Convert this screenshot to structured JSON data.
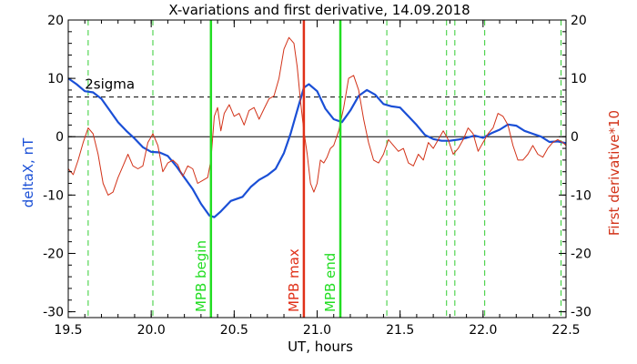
{
  "chart_data": {
    "type": "line",
    "title": "X-variations and first derivative, 14.09.2018",
    "xlabel": "UT, hours",
    "ylabel_left": "deltaX, nT",
    "ylabel_right": "First derivative*10",
    "xlim": [
      19.5,
      22.5
    ],
    "ylim": [
      -31,
      20
    ],
    "x_ticks": [
      "19.5",
      "20.0",
      "20.5",
      "21.0",
      "21.5",
      "22.0",
      "22.5"
    ],
    "y_ticks": [
      "20",
      "10",
      "0",
      "-10",
      "-20",
      "-30"
    ],
    "colors": {
      "deltaX": "#1a4fd6",
      "derivative": "#d23218",
      "mpb_boundary": "#22dd22",
      "mpb_max": "#e03018",
      "dashed_green": "#33cc33"
    },
    "threshold": {
      "label": "2sigma",
      "value": 6.8
    },
    "vertical_lines": [
      {
        "x": 20.36,
        "label": "MPB begin",
        "kind": "boundary"
      },
      {
        "x": 20.92,
        "label": "MPB max",
        "kind": "max"
      },
      {
        "x": 21.14,
        "label": "MPB end",
        "kind": "boundary"
      }
    ],
    "dashed_verticals": [
      19.62,
      20.01,
      21.42,
      21.78,
      21.83,
      22.01,
      22.47
    ],
    "series": [
      {
        "name": "deltaX",
        "axis": "left",
        "points": [
          [
            19.5,
            10.0
          ],
          [
            19.55,
            9.0
          ],
          [
            19.6,
            7.8
          ],
          [
            19.65,
            7.6
          ],
          [
            19.7,
            6.5
          ],
          [
            19.75,
            4.5
          ],
          [
            19.8,
            2.5
          ],
          [
            19.85,
            1.0
          ],
          [
            19.9,
            -0.3
          ],
          [
            19.95,
            -1.8
          ],
          [
            20.0,
            -2.6
          ],
          [
            20.05,
            -2.7
          ],
          [
            20.1,
            -3.3
          ],
          [
            20.15,
            -5.0
          ],
          [
            20.2,
            -7.0
          ],
          [
            20.25,
            -9.0
          ],
          [
            20.3,
            -11.5
          ],
          [
            20.35,
            -13.5
          ],
          [
            20.38,
            -13.8
          ],
          [
            20.42,
            -12.8
          ],
          [
            20.48,
            -11.0
          ],
          [
            20.55,
            -10.3
          ],
          [
            20.6,
            -8.6
          ],
          [
            20.65,
            -7.4
          ],
          [
            20.7,
            -6.6
          ],
          [
            20.75,
            -5.5
          ],
          [
            20.8,
            -2.8
          ],
          [
            20.84,
            0.5
          ],
          [
            20.88,
            4.5
          ],
          [
            20.92,
            8.4
          ],
          [
            20.95,
            9.0
          ],
          [
            21.0,
            7.8
          ],
          [
            21.05,
            4.8
          ],
          [
            21.1,
            3.0
          ],
          [
            21.15,
            2.5
          ],
          [
            21.2,
            4.5
          ],
          [
            21.25,
            7.0
          ],
          [
            21.3,
            8.0
          ],
          [
            21.35,
            7.2
          ],
          [
            21.4,
            5.6
          ],
          [
            21.45,
            5.2
          ],
          [
            21.5,
            5.0
          ],
          [
            21.55,
            3.5
          ],
          [
            21.6,
            2.0
          ],
          [
            21.65,
            0.3
          ],
          [
            21.7,
            -0.4
          ],
          [
            21.75,
            -0.7
          ],
          [
            21.8,
            -0.7
          ],
          [
            21.85,
            -0.5
          ],
          [
            21.9,
            -0.2
          ],
          [
            21.95,
            0.2
          ],
          [
            22.0,
            -0.2
          ],
          [
            22.05,
            0.6
          ],
          [
            22.1,
            1.2
          ],
          [
            22.15,
            2.1
          ],
          [
            22.2,
            1.9
          ],
          [
            22.25,
            1.0
          ],
          [
            22.3,
            0.5
          ],
          [
            22.35,
            0.0
          ],
          [
            22.4,
            -0.9
          ],
          [
            22.45,
            -0.8
          ],
          [
            22.5,
            -1.1
          ]
        ]
      },
      {
        "name": "First derivative*10",
        "axis": "right",
        "points": [
          [
            19.5,
            -5.5
          ],
          [
            19.53,
            -6.5
          ],
          [
            19.56,
            -4.0
          ],
          [
            19.59,
            -1.0
          ],
          [
            19.62,
            1.5
          ],
          [
            19.65,
            0.5
          ],
          [
            19.68,
            -3.0
          ],
          [
            19.71,
            -8.0
          ],
          [
            19.74,
            -10.0
          ],
          [
            19.77,
            -9.5
          ],
          [
            19.8,
            -7.0
          ],
          [
            19.83,
            -5.0
          ],
          [
            19.86,
            -3.0
          ],
          [
            19.89,
            -5.0
          ],
          [
            19.92,
            -5.5
          ],
          [
            19.95,
            -5.0
          ],
          [
            19.98,
            -1.0
          ],
          [
            20.01,
            0.5
          ],
          [
            20.04,
            -1.5
          ],
          [
            20.07,
            -6.0
          ],
          [
            20.1,
            -4.5
          ],
          [
            20.13,
            -4.0
          ],
          [
            20.16,
            -4.8
          ],
          [
            20.19,
            -6.8
          ],
          [
            20.22,
            -5.0
          ],
          [
            20.25,
            -5.5
          ],
          [
            20.28,
            -8.0
          ],
          [
            20.31,
            -7.5
          ],
          [
            20.34,
            -7.0
          ],
          [
            20.36,
            -4.0
          ],
          [
            20.38,
            3.5
          ],
          [
            20.4,
            5.0
          ],
          [
            20.42,
            1.0
          ],
          [
            20.44,
            4.0
          ],
          [
            20.47,
            5.5
          ],
          [
            20.5,
            3.5
          ],
          [
            20.53,
            4.0
          ],
          [
            20.56,
            2.0
          ],
          [
            20.59,
            4.5
          ],
          [
            20.62,
            5.0
          ],
          [
            20.65,
            3.0
          ],
          [
            20.68,
            4.8
          ],
          [
            20.71,
            6.5
          ],
          [
            20.74,
            7.0
          ],
          [
            20.77,
            10.0
          ],
          [
            20.8,
            15.0
          ],
          [
            20.83,
            17.0
          ],
          [
            20.86,
            16.0
          ],
          [
            20.88,
            12.0
          ],
          [
            20.9,
            6.0
          ],
          [
            20.92,
            1.0
          ],
          [
            20.94,
            -3.0
          ],
          [
            20.96,
            -8.0
          ],
          [
            20.98,
            -9.5
          ],
          [
            21.0,
            -8.0
          ],
          [
            21.02,
            -4.0
          ],
          [
            21.04,
            -4.5
          ],
          [
            21.06,
            -3.5
          ],
          [
            21.08,
            -2.0
          ],
          [
            21.1,
            -1.5
          ],
          [
            21.13,
            1.0
          ],
          [
            21.16,
            5.0
          ],
          [
            21.19,
            10.0
          ],
          [
            21.22,
            10.5
          ],
          [
            21.25,
            8.0
          ],
          [
            21.28,
            3.0
          ],
          [
            21.31,
            -1.0
          ],
          [
            21.34,
            -4.0
          ],
          [
            21.37,
            -4.5
          ],
          [
            21.4,
            -3.0
          ],
          [
            21.43,
            -0.5
          ],
          [
            21.46,
            -1.5
          ],
          [
            21.49,
            -2.5
          ],
          [
            21.52,
            -2.0
          ],
          [
            21.55,
            -4.5
          ],
          [
            21.58,
            -5.0
          ],
          [
            21.61,
            -3.0
          ],
          [
            21.64,
            -4.0
          ],
          [
            21.67,
            -1.0
          ],
          [
            21.7,
            -2.0
          ],
          [
            21.73,
            -0.5
          ],
          [
            21.76,
            1.0
          ],
          [
            21.79,
            -0.5
          ],
          [
            21.82,
            -3.0
          ],
          [
            21.85,
            -2.0
          ],
          [
            21.88,
            -0.5
          ],
          [
            21.91,
            1.5
          ],
          [
            21.94,
            0.5
          ],
          [
            21.97,
            -2.5
          ],
          [
            22.0,
            -1.0
          ],
          [
            22.03,
            0.5
          ],
          [
            22.06,
            1.5
          ],
          [
            22.09,
            4.0
          ],
          [
            22.12,
            3.5
          ],
          [
            22.15,
            2.0
          ],
          [
            22.18,
            -1.5
          ],
          [
            22.21,
            -4.0
          ],
          [
            22.24,
            -4.0
          ],
          [
            22.27,
            -3.0
          ],
          [
            22.3,
            -1.5
          ],
          [
            22.33,
            -3.0
          ],
          [
            22.36,
            -3.5
          ],
          [
            22.39,
            -2.0
          ],
          [
            22.42,
            -1.0
          ],
          [
            22.45,
            -0.5
          ],
          [
            22.48,
            -1.0
          ],
          [
            22.5,
            -1.5
          ]
        ]
      }
    ],
    "grid": false,
    "zero_line": 0
  }
}
